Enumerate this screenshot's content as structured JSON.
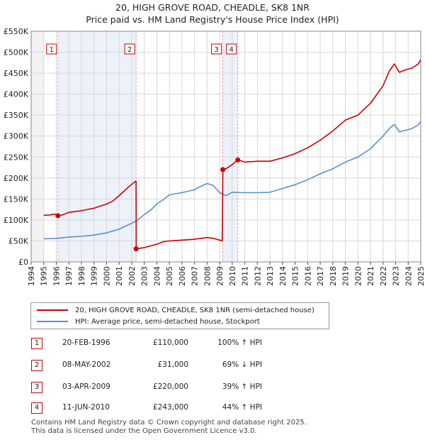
{
  "chart_data": {
    "type": "line",
    "title": "20, HIGH GROVE ROAD, CHEADLE, SK8 1NR",
    "subtitle": "Price paid vs. HM Land Registry's House Price Index (HPI)",
    "xlim": [
      1994,
      2025
    ],
    "ylim": [
      0,
      550000
    ],
    "x_ticks": [
      "1994",
      "1995",
      "1996",
      "1997",
      "1998",
      "1999",
      "2000",
      "2001",
      "2002",
      "2003",
      "2004",
      "2005",
      "2006",
      "2007",
      "2008",
      "2009",
      "2010",
      "2011",
      "2012",
      "2013",
      "2014",
      "2015",
      "2016",
      "2017",
      "2018",
      "2019",
      "2020",
      "2021",
      "2022",
      "2023",
      "2024",
      "2025"
    ],
    "y_ticks": [
      {
        "value": 0,
        "label": "£0"
      },
      {
        "value": 50000,
        "label": "£50K"
      },
      {
        "value": 100000,
        "label": "£100K"
      },
      {
        "value": 150000,
        "label": "£150K"
      },
      {
        "value": 200000,
        "label": "£200K"
      },
      {
        "value": 250000,
        "label": "£250K"
      },
      {
        "value": 300000,
        "label": "£300K"
      },
      {
        "value": 350000,
        "label": "£350K"
      },
      {
        "value": 400000,
        "label": "£400K"
      },
      {
        "value": 450000,
        "label": "£450K"
      },
      {
        "value": 500000,
        "label": "£500K"
      },
      {
        "value": 550000,
        "label": "£550K"
      }
    ],
    "grid": true,
    "data_range_x": [
      1995.0,
      2025.0
    ],
    "colors": {
      "property": "#cc0000",
      "hpi": "#5b8fcb",
      "highlight": "#dde6f5",
      "vline": "#e8a0a0"
    },
    "series": [
      {
        "name": "20, HIGH GROVE ROAD, CHEADLE, SK8 1NR (semi-detached house)",
        "color": "#cc0000",
        "points": [
          [
            1995.0,
            111000
          ],
          [
            1995.5,
            112000
          ],
          [
            1995.9,
            114000
          ],
          [
            1996.13,
            110000
          ],
          [
            1996.5,
            112000
          ],
          [
            1997.0,
            118000
          ],
          [
            1997.5,
            120000
          ],
          [
            1998.0,
            122000
          ],
          [
            1998.5,
            125000
          ],
          [
            1999.0,
            128000
          ],
          [
            1999.5,
            133000
          ],
          [
            2000.0,
            138000
          ],
          [
            2000.5,
            145000
          ],
          [
            2001.0,
            158000
          ],
          [
            2001.5,
            172000
          ],
          [
            2002.0,
            185000
          ],
          [
            2002.3,
            192000
          ],
          [
            2002.35,
            192000
          ],
          [
            2002.36,
            31000
          ],
          [
            2003.0,
            34000
          ],
          [
            2003.5,
            38000
          ],
          [
            2004.0,
            42000
          ],
          [
            2004.5,
            48000
          ],
          [
            2005.0,
            50000
          ],
          [
            2005.5,
            51000
          ],
          [
            2006.0,
            52000
          ],
          [
            2006.5,
            53000
          ],
          [
            2007.0,
            54000
          ],
          [
            2007.5,
            56000
          ],
          [
            2008.0,
            58000
          ],
          [
            2008.5,
            56000
          ],
          [
            2009.0,
            52000
          ],
          [
            2009.2,
            50000
          ],
          [
            2009.25,
            220000
          ],
          [
            2009.5,
            222000
          ],
          [
            2010.0,
            232000
          ],
          [
            2010.44,
            243000
          ],
          [
            2010.8,
            240000
          ],
          [
            2011.0,
            238000
          ],
          [
            2012.0,
            240000
          ],
          [
            2013.0,
            240000
          ],
          [
            2014.0,
            248000
          ],
          [
            2015.0,
            258000
          ],
          [
            2016.0,
            272000
          ],
          [
            2017.0,
            290000
          ],
          [
            2018.0,
            312000
          ],
          [
            2019.0,
            338000
          ],
          [
            2020.0,
            350000
          ],
          [
            2021.0,
            378000
          ],
          [
            2022.0,
            420000
          ],
          [
            2022.5,
            455000
          ],
          [
            2022.9,
            472000
          ],
          [
            2023.3,
            452000
          ],
          [
            2023.8,
            458000
          ],
          [
            2024.3,
            462000
          ],
          [
            2024.8,
            472000
          ],
          [
            2025.0,
            482000
          ]
        ]
      },
      {
        "name": "HPI: Average price, semi-detached house, Stockport",
        "color": "#5b8fcb",
        "points": [
          [
            1995.0,
            55000
          ],
          [
            1996.0,
            56000
          ],
          [
            1997.0,
            59000
          ],
          [
            1998.0,
            61000
          ],
          [
            1999.0,
            64000
          ],
          [
            2000.0,
            69000
          ],
          [
            2001.0,
            78000
          ],
          [
            2002.0,
            92000
          ],
          [
            2002.5,
            100000
          ],
          [
            2003.0,
            113000
          ],
          [
            2003.5,
            123000
          ],
          [
            2004.0,
            138000
          ],
          [
            2004.5,
            148000
          ],
          [
            2005.0,
            160000
          ],
          [
            2006.0,
            165000
          ],
          [
            2007.0,
            172000
          ],
          [
            2007.5,
            180000
          ],
          [
            2008.0,
            187000
          ],
          [
            2008.5,
            182000
          ],
          [
            2009.0,
            165000
          ],
          [
            2009.5,
            158000
          ],
          [
            2010.0,
            166000
          ],
          [
            2011.0,
            165000
          ],
          [
            2012.0,
            165000
          ],
          [
            2013.0,
            166000
          ],
          [
            2014.0,
            175000
          ],
          [
            2015.0,
            184000
          ],
          [
            2016.0,
            196000
          ],
          [
            2017.0,
            210000
          ],
          [
            2018.0,
            222000
          ],
          [
            2019.0,
            238000
          ],
          [
            2020.0,
            250000
          ],
          [
            2021.0,
            270000
          ],
          [
            2022.0,
            300000
          ],
          [
            2022.5,
            318000
          ],
          [
            2022.9,
            328000
          ],
          [
            2023.3,
            310000
          ],
          [
            2023.8,
            314000
          ],
          [
            2024.3,
            318000
          ],
          [
            2024.8,
            327000
          ],
          [
            2025.0,
            335000
          ]
        ]
      }
    ],
    "transactions": [
      {
        "id": "1",
        "year": 1996.13,
        "price": 110000,
        "date": "20-FEB-1996",
        "price_label": "£110,000",
        "hpi_label": "100% ↑ HPI"
      },
      {
        "id": "2",
        "year": 2002.35,
        "price": 31000,
        "date": "08-MAY-2002",
        "price_label": "£31,000",
        "hpi_label": "69% ↓ HPI"
      },
      {
        "id": "3",
        "year": 2009.25,
        "price": 220000,
        "date": "03-APR-2009",
        "price_label": "£220,000",
        "hpi_label": "39% ↑ HPI"
      },
      {
        "id": "4",
        "year": 2010.44,
        "price": 243000,
        "date": "11-JUN-2010",
        "price_label": "£243,000",
        "hpi_label": "44% ↑ HPI"
      }
    ]
  },
  "footer": {
    "line1": "Contains HM Land Registry data © Crown copyright and database right 2025.",
    "line2": "This data is licensed under the Open Government Licence v3.0."
  }
}
